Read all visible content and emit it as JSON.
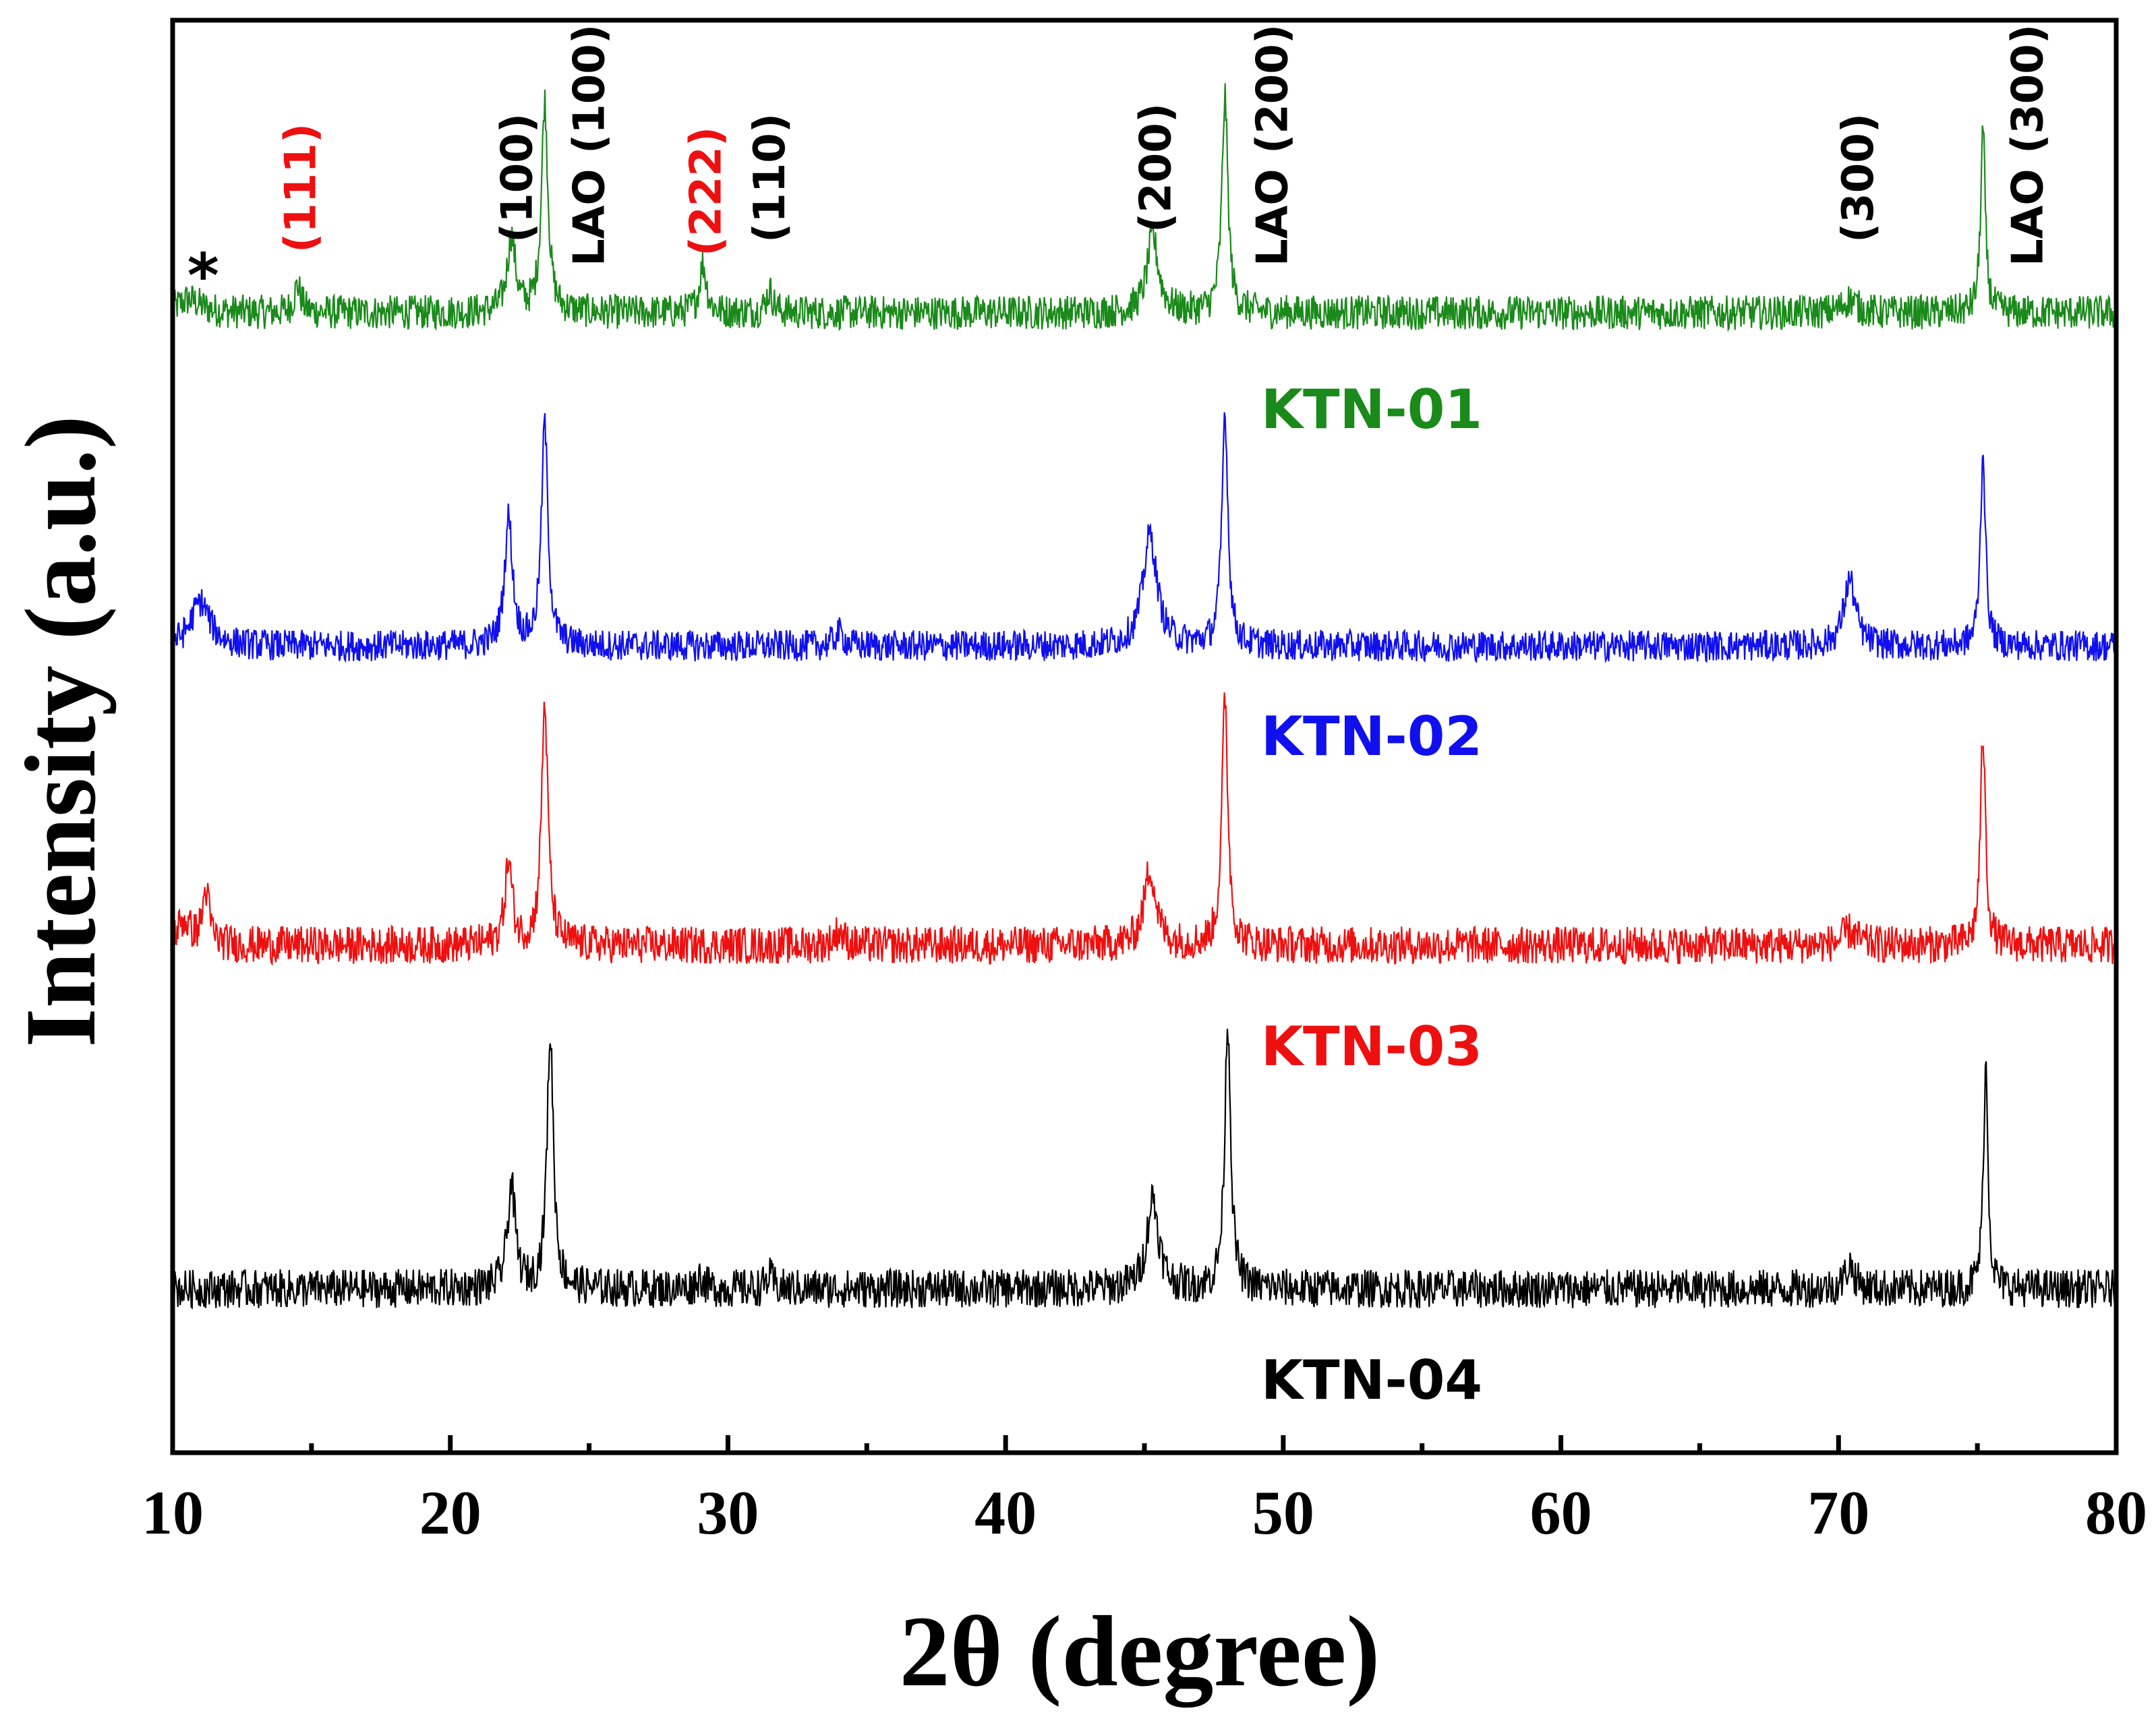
{
  "chart_data": {
    "type": "line",
    "title": "",
    "xlabel": "2θ (degree)",
    "ylabel": "Intensity (a.u.)",
    "xlim": [
      10,
      80
    ],
    "x_ticks": [
      10,
      20,
      30,
      40,
      50,
      60,
      70,
      80
    ],
    "x_tick_labels": [
      "10",
      "20",
      "30",
      "40",
      "50",
      "60",
      "70",
      "80"
    ],
    "y_ticks_shown": false,
    "offset_stacked": true,
    "series": [
      {
        "name": "KTN-01",
        "color": "#1a8a1a",
        "baseline": 0.1,
        "noise": 0.16,
        "peaks": [
          {
            "x": 10.6,
            "h": 0.12,
            "w": 0.5
          },
          {
            "x": 14.5,
            "h": 0.25,
            "w": 0.15
          },
          {
            "x": 22.2,
            "h": 0.7,
            "w": 0.18
          },
          {
            "x": 23.4,
            "h": 1.95,
            "w": 0.14
          },
          {
            "x": 29.1,
            "h": 0.45,
            "w": 0.15
          },
          {
            "x": 31.5,
            "h": 0.2,
            "w": 0.15
          },
          {
            "x": 45.3,
            "h": 0.7,
            "w": 0.25
          },
          {
            "x": 47.9,
            "h": 2.0,
            "w": 0.13
          },
          {
            "x": 70.4,
            "h": 0.12,
            "w": 0.3
          },
          {
            "x": 75.2,
            "h": 1.7,
            "w": 0.1
          }
        ]
      },
      {
        "name": "KTN-02",
        "color": "#1010ee",
        "baseline": 0.1,
        "noise": 0.14,
        "peaks": [
          {
            "x": 11.0,
            "h": 0.4,
            "w": 0.4
          },
          {
            "x": 22.1,
            "h": 1.15,
            "w": 0.17
          },
          {
            "x": 23.4,
            "h": 2.0,
            "w": 0.14
          },
          {
            "x": 34.0,
            "h": 0.12,
            "w": 0.2
          },
          {
            "x": 45.2,
            "h": 1.0,
            "w": 0.3
          },
          {
            "x": 47.9,
            "h": 2.1,
            "w": 0.13
          },
          {
            "x": 70.4,
            "h": 0.6,
            "w": 0.25
          },
          {
            "x": 75.2,
            "h": 1.75,
            "w": 0.11
          }
        ]
      },
      {
        "name": "KTN-03",
        "color": "#ee1010",
        "baseline": 0.1,
        "noise": 0.16,
        "peaks": [
          {
            "x": 10.4,
            "h": 0.2,
            "w": 0.3
          },
          {
            "x": 11.2,
            "h": 0.45,
            "w": 0.15
          },
          {
            "x": 22.1,
            "h": 0.7,
            "w": 0.16
          },
          {
            "x": 23.4,
            "h": 2.05,
            "w": 0.14
          },
          {
            "x": 34.0,
            "h": 0.12,
            "w": 0.2
          },
          {
            "x": 45.2,
            "h": 0.65,
            "w": 0.25
          },
          {
            "x": 47.9,
            "h": 2.1,
            "w": 0.13
          },
          {
            "x": 70.4,
            "h": 0.12,
            "w": 0.3
          },
          {
            "x": 75.2,
            "h": 1.8,
            "w": 0.11
          }
        ]
      },
      {
        "name": "KTN-04",
        "color": "#000000",
        "baseline": 0.1,
        "noise": 0.16,
        "peaks": [
          {
            "x": 22.2,
            "h": 0.85,
            "w": 0.17
          },
          {
            "x": 23.6,
            "h": 2.1,
            "w": 0.14
          },
          {
            "x": 29.0,
            "h": 0.1,
            "w": 0.15
          },
          {
            "x": 31.5,
            "h": 0.1,
            "w": 0.15
          },
          {
            "x": 45.3,
            "h": 0.75,
            "w": 0.25
          },
          {
            "x": 48.0,
            "h": 2.2,
            "w": 0.13
          },
          {
            "x": 70.4,
            "h": 0.2,
            "w": 0.2
          },
          {
            "x": 75.3,
            "h": 1.85,
            "w": 0.1
          }
        ]
      }
    ],
    "annotations": [
      {
        "text": "*",
        "x": 11.1,
        "color": "#000000",
        "kind": "star"
      },
      {
        "text": "(111)",
        "x": 14.6,
        "color": "#ee1010"
      },
      {
        "text": "(100)",
        "x": 22.4,
        "color": "#000000"
      },
      {
        "text": "LAO (100)",
        "x": 25.0,
        "color": "#000000"
      },
      {
        "text": "(222)",
        "x": 29.2,
        "color": "#ee1010"
      },
      {
        "text": "(110)",
        "x": 31.5,
        "color": "#000000"
      },
      {
        "text": "(200)",
        "x": 45.4,
        "color": "#000000"
      },
      {
        "text": "LAO (200)",
        "x": 49.6,
        "color": "#000000"
      },
      {
        "text": "(300)",
        "x": 70.7,
        "color": "#000000"
      },
      {
        "text": "LAO (300)",
        "x": 76.8,
        "color": "#000000"
      }
    ]
  }
}
